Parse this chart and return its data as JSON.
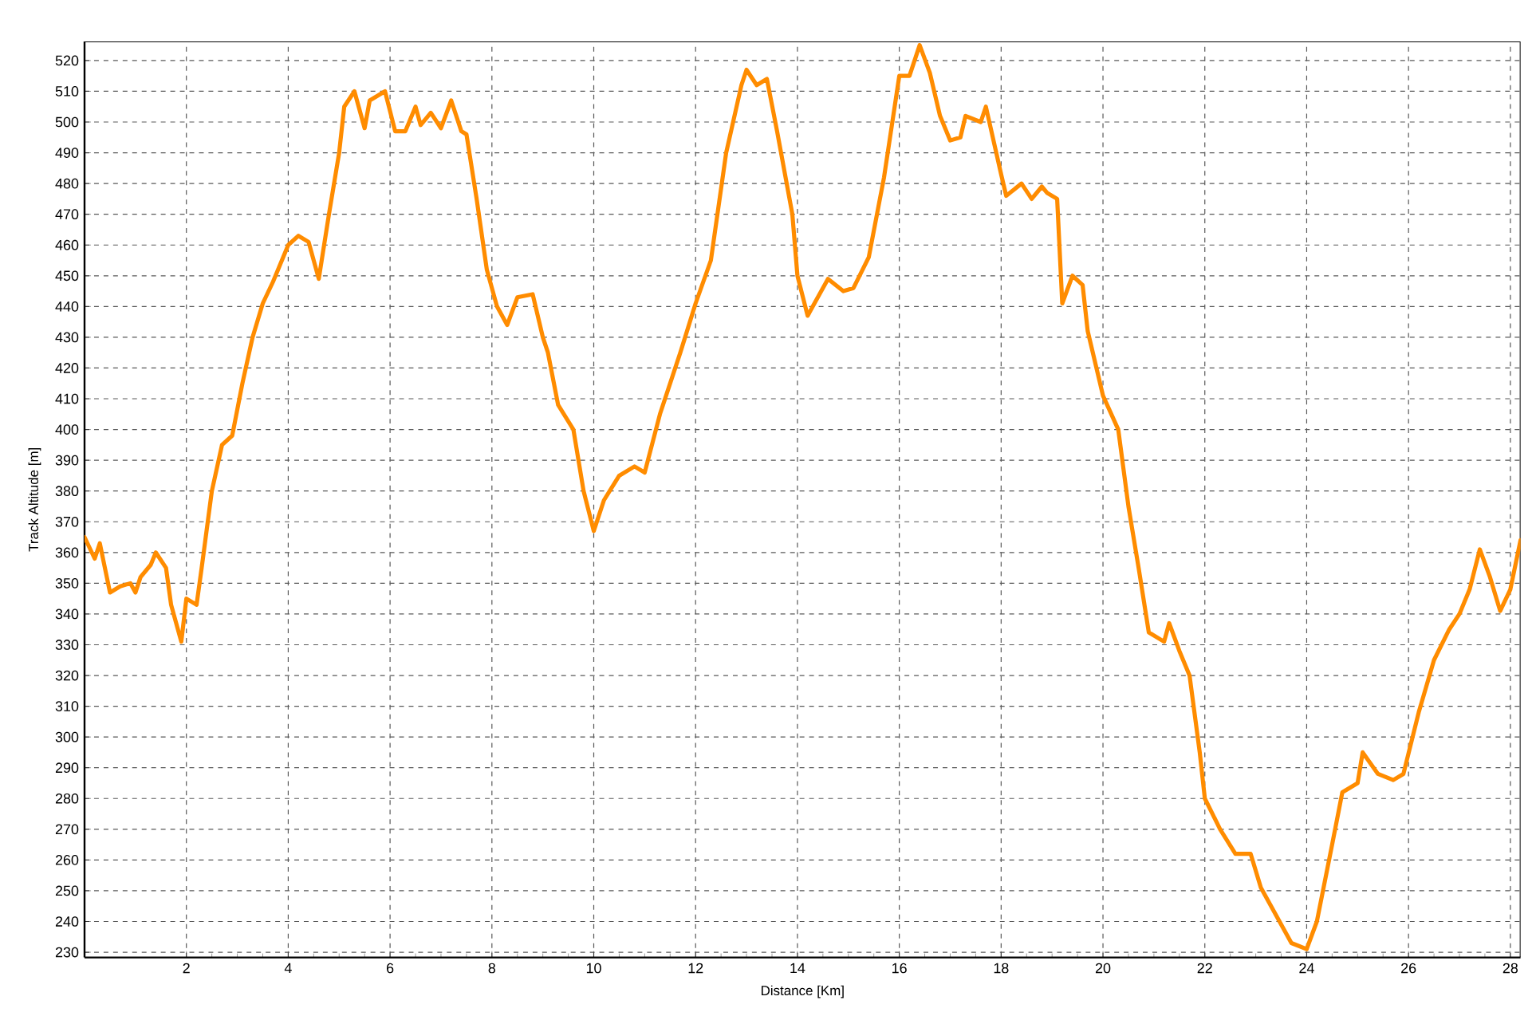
{
  "chart_data": {
    "type": "line",
    "xlabel": "Distance [Km]",
    "ylabel": "Track Altitude [m]",
    "x": [
      0,
      0.2,
      0.3,
      0.5,
      0.7,
      0.9,
      1.0,
      1.1,
      1.3,
      1.4,
      1.6,
      1.7,
      1.9,
      2.0,
      2.2,
      2.3,
      2.5,
      2.7,
      2.9,
      3.1,
      3.3,
      3.5,
      3.7,
      4.0,
      4.2,
      4.4,
      4.6,
      4.8,
      5.0,
      5.1,
      5.3,
      5.5,
      5.6,
      5.9,
      6.1,
      6.3,
      6.5,
      6.6,
      6.8,
      7.0,
      7.2,
      7.4,
      7.5,
      7.7,
      7.9,
      8.1,
      8.3,
      8.5,
      8.8,
      9.0,
      9.1,
      9.3,
      9.6,
      9.8,
      10.0,
      10.2,
      10.5,
      10.8,
      11.0,
      11.3,
      11.7,
      12.0,
      12.3,
      12.6,
      12.9,
      13.0,
      13.2,
      13.4,
      13.6,
      13.9,
      14.0,
      14.2,
      14.4,
      14.6,
      14.9,
      15.1,
      15.4,
      15.7,
      16.0,
      16.2,
      16.4,
      16.6,
      16.8,
      17.0,
      17.2,
      17.3,
      17.6,
      17.7,
      18.0,
      18.1,
      18.4,
      18.6,
      18.8,
      18.9,
      19.1,
      19.2,
      19.4,
      19.6,
      19.7,
      20.0,
      20.3,
      20.5,
      20.7,
      20.9,
      21.2,
      21.3,
      21.5,
      21.7,
      21.9,
      22.0,
      22.3,
      22.6,
      22.9,
      23.1,
      23.4,
      23.7,
      24.0,
      24.2,
      24.5,
      24.7,
      25.0,
      25.1,
      25.4,
      25.7,
      25.9,
      26.2,
      26.5,
      26.8,
      27.0,
      27.2,
      27.4,
      27.6,
      27.8,
      28.0,
      28.2
    ],
    "values": [
      365,
      358,
      363,
      347,
      349,
      350,
      347,
      352,
      356,
      360,
      355,
      343,
      331,
      345,
      343,
      355,
      380,
      395,
      398,
      415,
      430,
      441,
      448,
      460,
      463,
      461,
      449,
      470,
      490,
      505,
      510,
      498,
      507,
      510,
      497,
      497,
      505,
      499,
      503,
      498,
      507,
      497,
      496,
      475,
      452,
      440,
      434,
      443,
      444,
      430,
      425,
      408,
      400,
      380,
      367,
      377,
      385,
      388,
      386,
      405,
      425,
      441,
      455,
      490,
      512,
      517,
      512,
      514,
      497,
      470,
      450,
      437,
      443,
      449,
      445,
      446,
      456,
      482,
      515,
      515,
      525,
      516,
      502,
      494,
      495,
      502,
      500,
      505,
      483,
      476,
      480,
      475,
      479,
      477,
      475,
      441,
      450,
      447,
      432,
      411,
      400,
      375,
      355,
      334,
      331,
      337,
      328,
      320,
      295,
      280,
      270,
      262,
      262,
      251,
      242,
      233,
      231,
      240,
      265,
      282,
      285,
      295,
      288,
      286,
      288,
      308,
      325,
      335,
      340,
      348,
      361,
      352,
      341,
      348,
      364
    ],
    "xlim": [
      0,
      28.2
    ],
    "ylim": [
      228.3,
      526.2
    ],
    "xticks": [
      2,
      4,
      6,
      8,
      10,
      12,
      14,
      16,
      18,
      20,
      22,
      24,
      26,
      28
    ],
    "yticks": [
      230,
      240,
      250,
      260,
      270,
      280,
      290,
      300,
      310,
      320,
      330,
      340,
      350,
      360,
      370,
      380,
      390,
      400,
      410,
      420,
      430,
      440,
      450,
      460,
      470,
      480,
      490,
      500,
      510,
      520
    ],
    "color": "#ff8c00",
    "grid": true,
    "marker": "none",
    "line_style": "solid"
  }
}
